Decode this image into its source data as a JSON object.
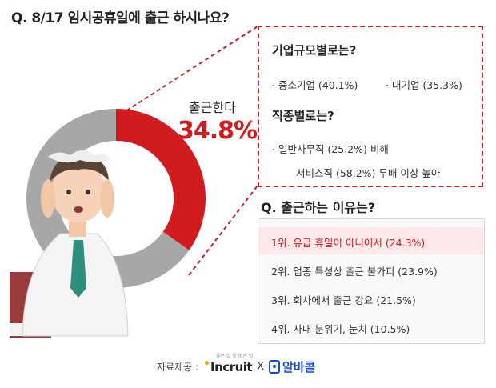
{
  "question": "Q. 8/17 임시공휴일에 출근 하시나요?",
  "chart_data": {
    "type": "pie",
    "labels": [
      "출근한다"
    ],
    "values": [
      34.8
    ],
    "callout": {
      "label": "출근한다",
      "value_text": "34.8%"
    },
    "colors": {
      "work": "#d01c1f",
      "rest": "#a7a7a7"
    }
  },
  "detail": {
    "size_title": "기업규모별로는?",
    "sme": "· 중소기업 (40.1%)",
    "large": "· 대기업 (35.3%)",
    "job_title": "직종별로는?",
    "office": "· 일반사무직 (25.2%) 비해",
    "service": "서비스직 (58.2%) 두배 이상 높아"
  },
  "reasons": {
    "title": "Q. 출근하는 이유는?",
    "items": [
      "1위. 유급 휴일이 아니어서 (24.3%)",
      "2위. 업종 특성상 출근 불가피 (23.9%)",
      "3위. 회사에서 출근 강요 (21.5%)",
      "4위. 사내 분위기, 눈치 (10.5%)"
    ]
  },
  "source": {
    "label": "자료제공 :",
    "incruit_tag": "좋은 일 잇 많은 일",
    "incruit": "Incruit",
    "sep": "X",
    "alba": "알바콜"
  }
}
